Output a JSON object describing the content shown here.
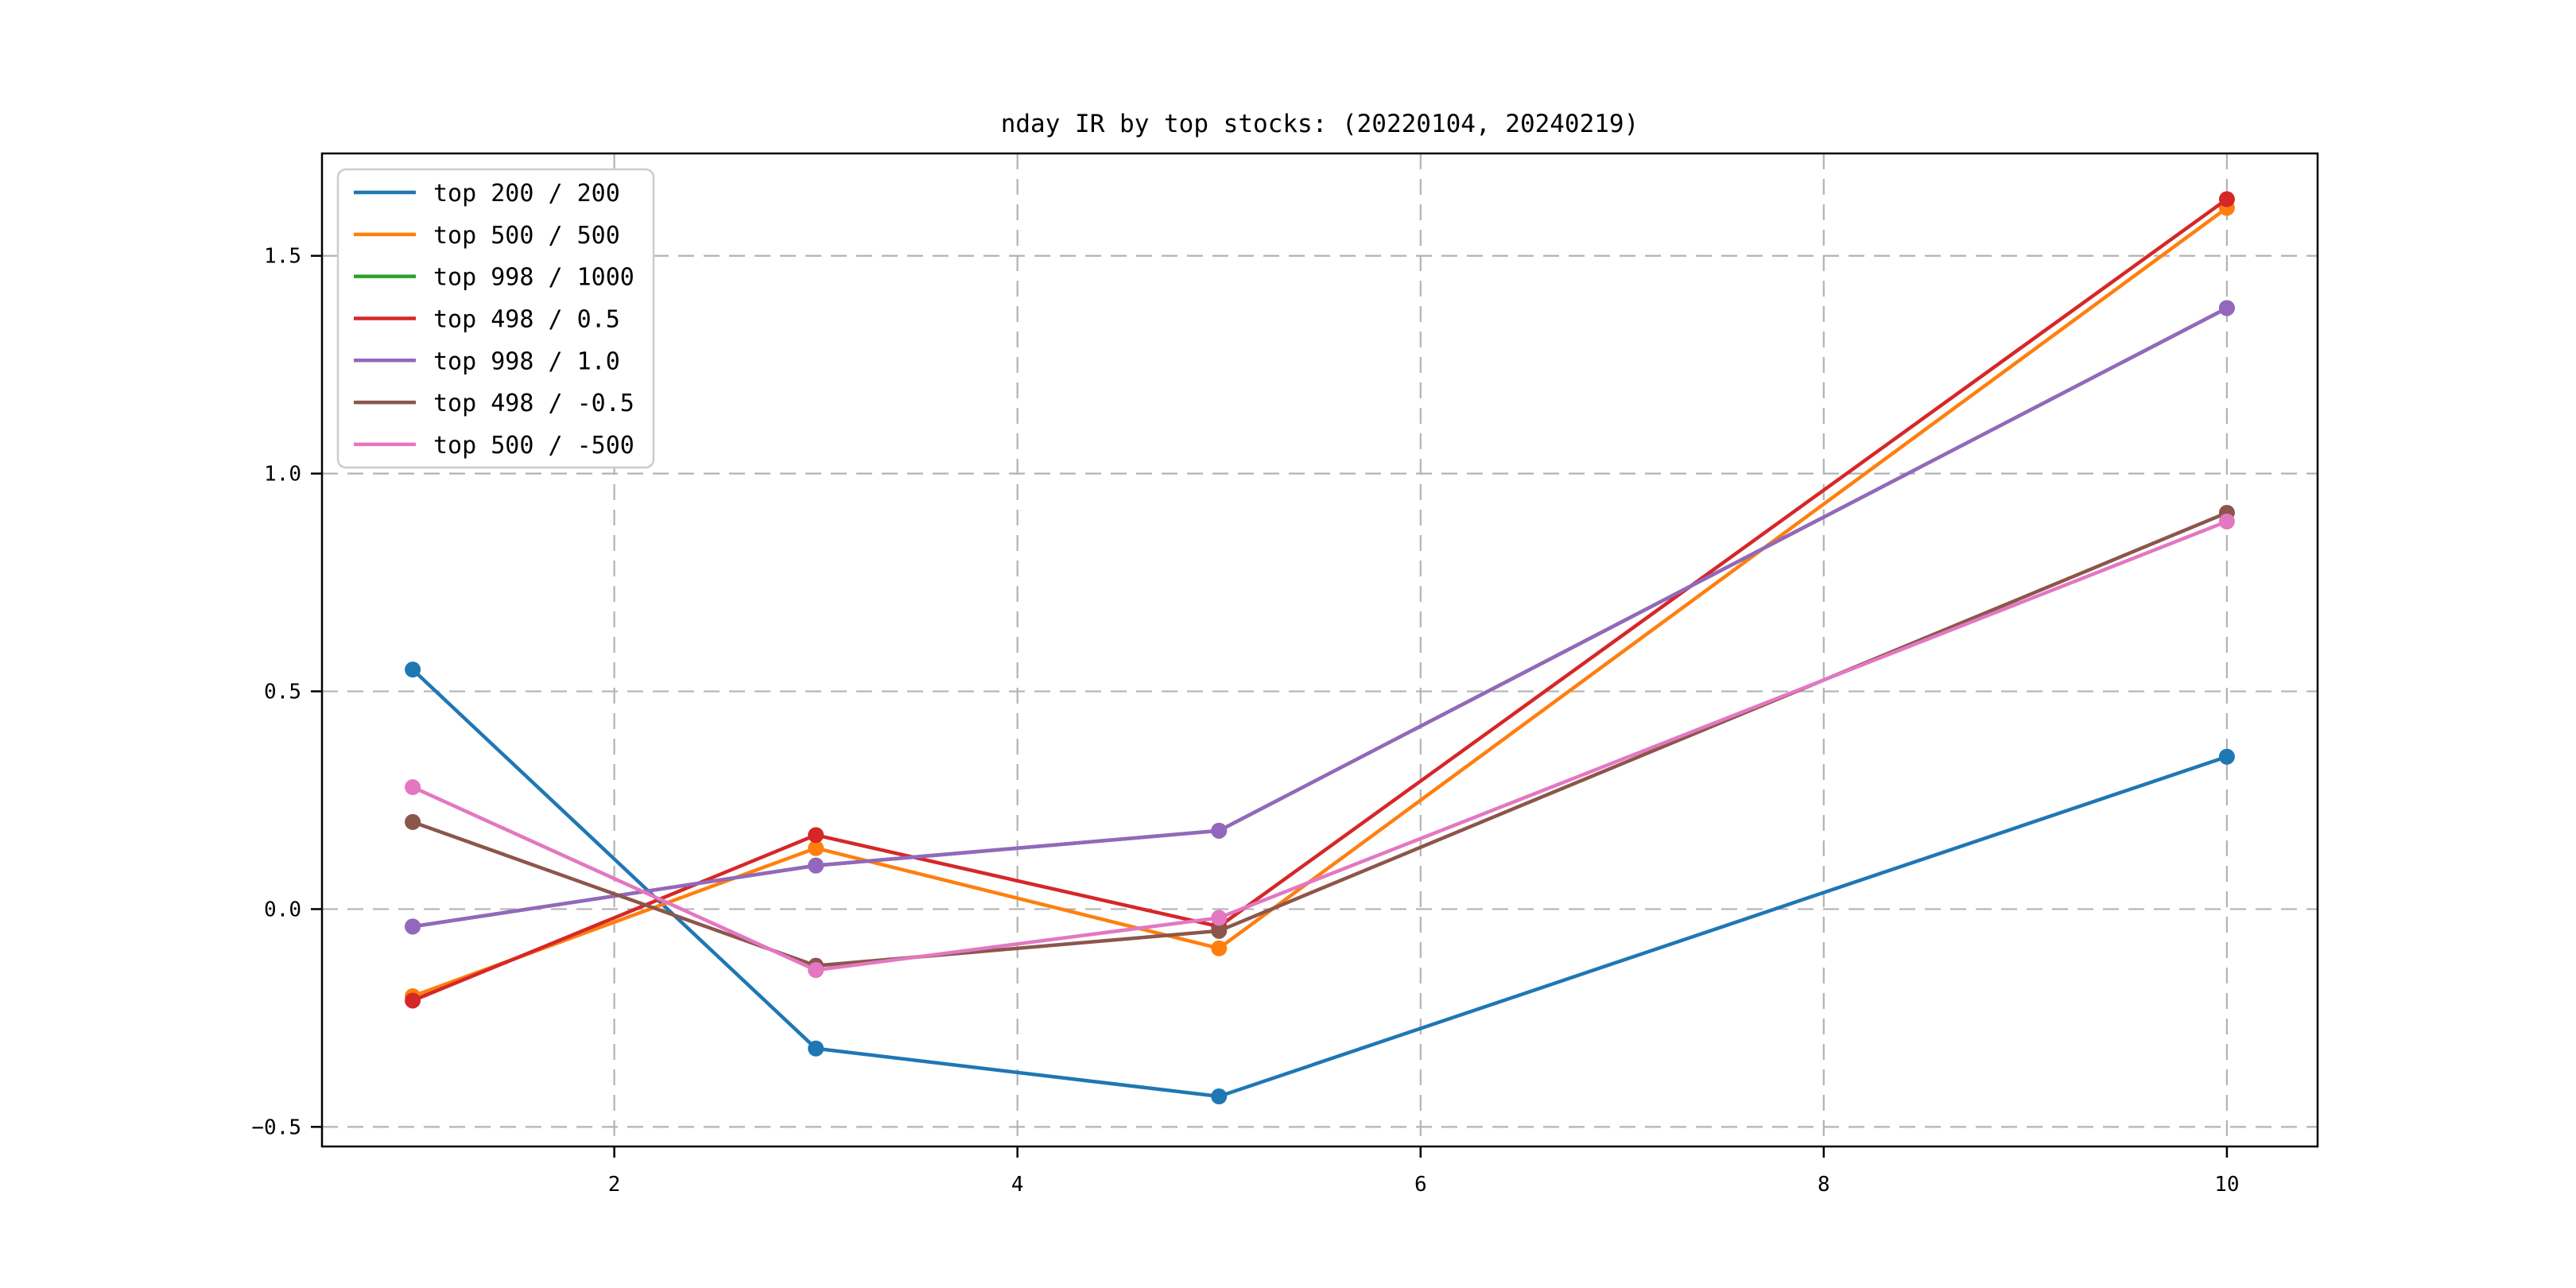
{
  "chart_data": {
    "type": "line",
    "title": "nday IR by top stocks: (20220104, 20240219)",
    "xlabel": "",
    "ylabel": "",
    "x": [
      1,
      3,
      5,
      10
    ],
    "series": [
      {
        "name": "top 200 / 200",
        "color": "#1f77b4",
        "values": [
          0.55,
          -0.32,
          -0.43,
          0.35
        ]
      },
      {
        "name": "top 500 / 500",
        "color": "#ff7f0e",
        "values": [
          -0.2,
          0.14,
          -0.09,
          1.61
        ]
      },
      {
        "name": "top 998 / 1000",
        "color": "#2ca02c",
        "values": [
          -0.04,
          0.1,
          0.18,
          1.38
        ]
      },
      {
        "name": "top 498 / 0.5",
        "color": "#d62728",
        "values": [
          -0.21,
          0.17,
          -0.04,
          1.63
        ]
      },
      {
        "name": "top 998 / 1.0",
        "color": "#9467bd",
        "values": [
          -0.04,
          0.1,
          0.18,
          1.38
        ]
      },
      {
        "name": "top 498 / -0.5",
        "color": "#8c564b",
        "values": [
          0.2,
          -0.13,
          -0.05,
          0.91
        ]
      },
      {
        "name": "top 500 / -500",
        "color": "#e377c2",
        "values": [
          0.28,
          -0.14,
          -0.02,
          0.89
        ]
      }
    ],
    "xticks": [
      2,
      4,
      6,
      8,
      10
    ],
    "xtick_labels": [
      "2",
      "4",
      "6",
      "8",
      "10"
    ],
    "yticks": [
      -0.5,
      0.0,
      0.5,
      1.0,
      1.5
    ],
    "ytick_labels": [
      "−0.5",
      "0.0",
      "0.5",
      "1.0",
      "1.5"
    ],
    "xlim": [
      0.55,
      10.45
    ],
    "ylim": [
      -0.545,
      1.735
    ],
    "grid": "dashed",
    "grid_color": "#b3b3b3",
    "legend_position": "upper-left",
    "marker": "circle",
    "note_hidden_series": "top 998 / 1000 coincides with top 998 / 1.0 and is covered by it"
  }
}
